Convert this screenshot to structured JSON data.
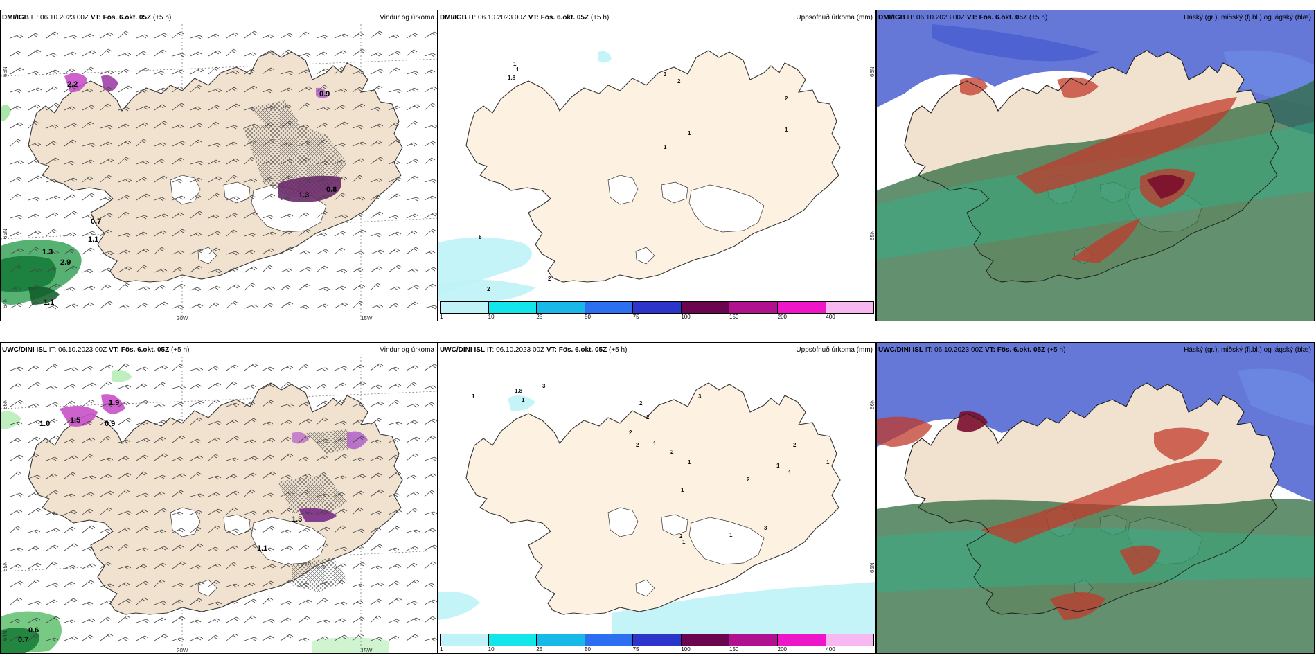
{
  "rows": [
    {
      "model": "DMI/IGB",
      "it": "IT: 06.10.2023 00Z",
      "vt_label": "VT:",
      "vt_value": "Fös. 6.okt. 05Z",
      "lead": "(+5 h)"
    },
    {
      "model": "UWC/DINI ISL",
      "it": "IT: 06.10.2023 00Z",
      "vt_label": "VT:",
      "vt_value": "Fös. 6.okt. 05Z",
      "lead": "(+5 h)"
    }
  ],
  "titles": {
    "wind": "Vindur og úrkoma",
    "accum": "Uppsöfnuð úrkoma (mm)",
    "clouds": "Háský (gr.), miðský (fj.bl.) og lágský (blæ)"
  },
  "axes": {
    "lon_20w": "20W",
    "lon_15w": "15W",
    "lat_66n": "66N",
    "lat_65n": "65N",
    "lat_64n": "64N"
  },
  "colorbar": {
    "labels": [
      "1",
      "10",
      "25",
      "50",
      "75",
      "100",
      "150",
      "200",
      "400"
    ],
    "colors": [
      "#bff3f7",
      "#12e6ea",
      "#18b8e8",
      "#2c6ff0",
      "#2c34c9",
      "#6b0550",
      "#b0128f",
      "#ef16c9",
      "#f7b7f0"
    ]
  },
  "wind_values": {
    "row1": [
      "2.2",
      "0.7",
      "1.1",
      "1.3",
      "2.9",
      "1.1",
      "0.9",
      "1.3",
      "0.8"
    ],
    "row2": [
      "1.0",
      "1.5",
      "1.9",
      "0.6",
      "0.7",
      "0.9",
      "1.1",
      "1.3"
    ]
  },
  "accum_values": {
    "row1": [
      "1",
      "1",
      "1.8",
      "3",
      "2",
      "1",
      "1",
      "2",
      "1",
      "8",
      "2",
      "2"
    ],
    "row2": [
      "1",
      "1.8",
      "3",
      "1",
      "3",
      "2",
      "2",
      "2",
      "2",
      "1",
      "2",
      "1",
      "1",
      "2",
      "1",
      "1",
      "2",
      "1",
      "1",
      "2",
      "3",
      "1"
    ]
  }
}
